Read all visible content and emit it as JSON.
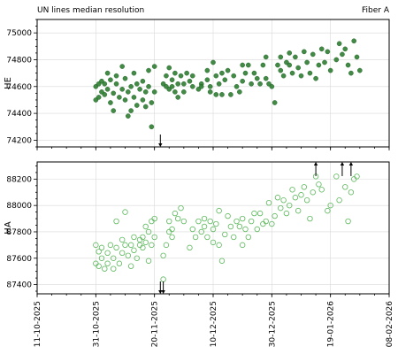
{
  "figure": {
    "title_left": "UN lines median resolution",
    "title_right": "Fiber A"
  },
  "chart_data": [
    {
      "type": "scatter",
      "title": "",
      "ylabel": "HE",
      "xlabel": "",
      "x_type": "date",
      "xlim": [
        "2025-10-11",
        "2026-02-08"
      ],
      "ylim": [
        74150,
        75100
      ],
      "yticks": [
        74200,
        74400,
        74600,
        74800,
        75000
      ],
      "grid": true,
      "marker": "filled-circle",
      "color": "#2e7d32",
      "outside_markers": [
        {
          "x": "2025-11-22",
          "direction": "down"
        }
      ],
      "points": [
        {
          "x": "2025-10-31",
          "y": 74600
        },
        {
          "x": "2025-10-31",
          "y": 74500
        },
        {
          "x": "2025-11-01",
          "y": 74620
        },
        {
          "x": "2025-11-01",
          "y": 74520
        },
        {
          "x": "2025-11-02",
          "y": 74560
        },
        {
          "x": "2025-11-02",
          "y": 74640
        },
        {
          "x": "2025-11-03",
          "y": 74540
        },
        {
          "x": "2025-11-03",
          "y": 74620
        },
        {
          "x": "2025-11-04",
          "y": 74700
        },
        {
          "x": "2025-11-04",
          "y": 74580
        },
        {
          "x": "2025-11-05",
          "y": 74480
        },
        {
          "x": "2025-11-05",
          "y": 74650
        },
        {
          "x": "2025-11-06",
          "y": 74420
        },
        {
          "x": "2025-11-06",
          "y": 74550
        },
        {
          "x": "2025-11-07",
          "y": 74620
        },
        {
          "x": "2025-11-07",
          "y": 74680
        },
        {
          "x": "2025-11-08",
          "y": 74520
        },
        {
          "x": "2025-11-09",
          "y": 74750
        },
        {
          "x": "2025-11-09",
          "y": 74580
        },
        {
          "x": "2025-11-10",
          "y": 74660
        },
        {
          "x": "2025-11-10",
          "y": 74500
        },
        {
          "x": "2025-11-11",
          "y": 74380
        },
        {
          "x": "2025-11-11",
          "y": 74560
        },
        {
          "x": "2025-11-12",
          "y": 74420
        },
        {
          "x": "2025-11-12",
          "y": 74600
        },
        {
          "x": "2025-11-13",
          "y": 74700
        },
        {
          "x": "2025-11-13",
          "y": 74520
        },
        {
          "x": "2025-11-14",
          "y": 74460
        },
        {
          "x": "2025-11-14",
          "y": 74620
        },
        {
          "x": "2025-11-15",
          "y": 74580
        },
        {
          "x": "2025-11-16",
          "y": 74500
        },
        {
          "x": "2025-11-16",
          "y": 74640
        },
        {
          "x": "2025-11-17",
          "y": 74450
        },
        {
          "x": "2025-11-17",
          "y": 74560
        },
        {
          "x": "2025-11-18",
          "y": 74720
        },
        {
          "x": "2025-11-18",
          "y": 74600
        },
        {
          "x": "2025-11-19",
          "y": 74300
        },
        {
          "x": "2025-11-19",
          "y": 74480
        },
        {
          "x": "2025-11-20",
          "y": 74750
        },
        {
          "x": "2025-11-20",
          "y": 74560
        },
        {
          "x": "2025-11-23",
          "y": 74620
        },
        {
          "x": "2025-11-24",
          "y": 74680
        },
        {
          "x": "2025-11-24",
          "y": 74600
        },
        {
          "x": "2025-11-25",
          "y": 74580
        },
        {
          "x": "2025-11-25",
          "y": 74740
        },
        {
          "x": "2025-11-26",
          "y": 74650
        },
        {
          "x": "2025-11-26",
          "y": 74600
        },
        {
          "x": "2025-11-27",
          "y": 74560
        },
        {
          "x": "2025-11-27",
          "y": 74700
        },
        {
          "x": "2025-11-28",
          "y": 74620
        },
        {
          "x": "2025-11-28",
          "y": 74520
        },
        {
          "x": "2025-11-29",
          "y": 74680
        },
        {
          "x": "2025-11-30",
          "y": 74620
        },
        {
          "x": "2025-11-30",
          "y": 74560
        },
        {
          "x": "2025-12-01",
          "y": 74700
        },
        {
          "x": "2025-12-02",
          "y": 74640
        },
        {
          "x": "2025-12-03",
          "y": 74600
        },
        {
          "x": "2025-12-03",
          "y": 74680
        },
        {
          "x": "2025-12-05",
          "y": 74580
        },
        {
          "x": "2025-12-06",
          "y": 74620
        },
        {
          "x": "2025-12-06",
          "y": 74600
        },
        {
          "x": "2025-12-08",
          "y": 74650
        },
        {
          "x": "2025-12-08",
          "y": 74720
        },
        {
          "x": "2025-12-09",
          "y": 74600
        },
        {
          "x": "2025-12-09",
          "y": 74560
        },
        {
          "x": "2025-12-10",
          "y": 74780
        },
        {
          "x": "2025-12-11",
          "y": 74680
        },
        {
          "x": "2025-12-11",
          "y": 74540
        },
        {
          "x": "2025-12-12",
          "y": 74620
        },
        {
          "x": "2025-12-13",
          "y": 74700
        },
        {
          "x": "2025-12-13",
          "y": 74540
        },
        {
          "x": "2025-12-14",
          "y": 74650
        },
        {
          "x": "2025-12-15",
          "y": 74720
        },
        {
          "x": "2025-12-16",
          "y": 74540
        },
        {
          "x": "2025-12-17",
          "y": 74680
        },
        {
          "x": "2025-12-18",
          "y": 74600
        },
        {
          "x": "2025-12-19",
          "y": 74560
        },
        {
          "x": "2025-12-20",
          "y": 74640
        },
        {
          "x": "2025-12-20",
          "y": 74760
        },
        {
          "x": "2025-12-21",
          "y": 74700
        },
        {
          "x": "2025-12-22",
          "y": 74760
        },
        {
          "x": "2025-12-23",
          "y": 74620
        },
        {
          "x": "2025-12-24",
          "y": 74700
        },
        {
          "x": "2025-12-25",
          "y": 74660
        },
        {
          "x": "2025-12-26",
          "y": 74620
        },
        {
          "x": "2025-12-27",
          "y": 74760
        },
        {
          "x": "2025-12-28",
          "y": 74820
        },
        {
          "x": "2025-12-28",
          "y": 74660
        },
        {
          "x": "2025-12-29",
          "y": 74620
        },
        {
          "x": "2025-12-30",
          "y": 74600
        },
        {
          "x": "2025-12-31",
          "y": 74480
        },
        {
          "x": "2026-01-01",
          "y": 74760
        },
        {
          "x": "2026-01-02",
          "y": 74820
        },
        {
          "x": "2026-01-02",
          "y": 74720
        },
        {
          "x": "2026-01-03",
          "y": 74680
        },
        {
          "x": "2026-01-04",
          "y": 74780
        },
        {
          "x": "2026-01-05",
          "y": 74850
        },
        {
          "x": "2026-01-05",
          "y": 74760
        },
        {
          "x": "2026-01-06",
          "y": 74700
        },
        {
          "x": "2026-01-07",
          "y": 74820
        },
        {
          "x": "2026-01-08",
          "y": 74740
        },
        {
          "x": "2026-01-09",
          "y": 74680
        },
        {
          "x": "2026-01-10",
          "y": 74860
        },
        {
          "x": "2026-01-11",
          "y": 74780
        },
        {
          "x": "2026-01-12",
          "y": 74700
        },
        {
          "x": "2026-01-13",
          "y": 74840
        },
        {
          "x": "2026-01-14",
          "y": 74660
        },
        {
          "x": "2026-01-15",
          "y": 74760
        },
        {
          "x": "2026-01-16",
          "y": 74880
        },
        {
          "x": "2026-01-17",
          "y": 74780
        },
        {
          "x": "2026-01-18",
          "y": 74860
        },
        {
          "x": "2026-01-19",
          "y": 74720
        },
        {
          "x": "2026-01-21",
          "y": 74800
        },
        {
          "x": "2026-01-22",
          "y": 74920
        },
        {
          "x": "2026-01-23",
          "y": 74840
        },
        {
          "x": "2026-01-24",
          "y": 74880
        },
        {
          "x": "2026-01-25",
          "y": 74760
        },
        {
          "x": "2026-01-26",
          "y": 74700
        },
        {
          "x": "2026-01-27",
          "y": 74940
        },
        {
          "x": "2026-01-28",
          "y": 74820
        },
        {
          "x": "2026-01-29",
          "y": 74720
        }
      ]
    },
    {
      "type": "scatter",
      "title": "",
      "ylabel": "HA",
      "xlabel": "",
      "x_type": "date",
      "xlim": [
        "2025-10-11",
        "2026-02-08"
      ],
      "ylim": [
        87330,
        88330
      ],
      "yticks": [
        87400,
        87600,
        87800,
        88000,
        88200
      ],
      "xticks": [
        "11-10-2025",
        "31-10-2025",
        "20-11-2025",
        "10-12-2025",
        "30-12-2025",
        "19-01-2026",
        "08-02-2026"
      ],
      "grid": true,
      "marker": "open-circle",
      "color": "#5cb85c",
      "outside_markers": [
        {
          "x": "2025-11-22",
          "direction": "down"
        },
        {
          "x": "2025-11-23",
          "direction": "down"
        },
        {
          "x": "2026-01-14",
          "direction": "up"
        },
        {
          "x": "2026-01-23",
          "direction": "up"
        },
        {
          "x": "2026-01-26",
          "direction": "up"
        }
      ],
      "points": [
        {
          "x": "2025-10-31",
          "y": 87700
        },
        {
          "x": "2025-10-31",
          "y": 87560
        },
        {
          "x": "2025-11-01",
          "y": 87650
        },
        {
          "x": "2025-11-01",
          "y": 87540
        },
        {
          "x": "2025-11-02",
          "y": 87600
        },
        {
          "x": "2025-11-02",
          "y": 87680
        },
        {
          "x": "2025-11-03",
          "y": 87520
        },
        {
          "x": "2025-11-04",
          "y": 87640
        },
        {
          "x": "2025-11-04",
          "y": 87560
        },
        {
          "x": "2025-11-05",
          "y": 87700
        },
        {
          "x": "2025-11-06",
          "y": 87600
        },
        {
          "x": "2025-11-06",
          "y": 87520
        },
        {
          "x": "2025-11-07",
          "y": 87880
        },
        {
          "x": "2025-11-07",
          "y": 87680
        },
        {
          "x": "2025-11-08",
          "y": 87560
        },
        {
          "x": "2025-11-09",
          "y": 87740
        },
        {
          "x": "2025-11-09",
          "y": 87640
        },
        {
          "x": "2025-11-10",
          "y": 87950
        },
        {
          "x": "2025-11-10",
          "y": 87700
        },
        {
          "x": "2025-11-11",
          "y": 87620
        },
        {
          "x": "2025-11-12",
          "y": 87540
        },
        {
          "x": "2025-11-12",
          "y": 87700
        },
        {
          "x": "2025-11-13",
          "y": 87760
        },
        {
          "x": "2025-11-13",
          "y": 87660
        },
        {
          "x": "2025-11-14",
          "y": 87600
        },
        {
          "x": "2025-11-15",
          "y": 87740
        },
        {
          "x": "2025-11-15",
          "y": 87700
        },
        {
          "x": "2025-11-16",
          "y": 87680
        },
        {
          "x": "2025-11-16",
          "y": 87760
        },
        {
          "x": "2025-11-17",
          "y": 87840
        },
        {
          "x": "2025-11-17",
          "y": 87720
        },
        {
          "x": "2025-11-18",
          "y": 87580
        },
        {
          "x": "2025-11-18",
          "y": 87800
        },
        {
          "x": "2025-11-19",
          "y": 87880
        },
        {
          "x": "2025-11-19",
          "y": 87700
        },
        {
          "x": "2025-11-20",
          "y": 87900
        },
        {
          "x": "2025-11-20",
          "y": 87760
        },
        {
          "x": "2025-11-23",
          "y": 87620
        },
        {
          "x": "2025-11-23",
          "y": 87440
        },
        {
          "x": "2025-11-24",
          "y": 87700
        },
        {
          "x": "2025-11-25",
          "y": 87800
        },
        {
          "x": "2025-11-25",
          "y": 87880
        },
        {
          "x": "2025-11-26",
          "y": 87820
        },
        {
          "x": "2025-11-26",
          "y": 87760
        },
        {
          "x": "2025-11-27",
          "y": 87940
        },
        {
          "x": "2025-11-28",
          "y": 87900
        },
        {
          "x": "2025-11-29",
          "y": 87980
        },
        {
          "x": "2025-11-30",
          "y": 87880
        },
        {
          "x": "2025-12-02",
          "y": 87680
        },
        {
          "x": "2025-12-03",
          "y": 87820
        },
        {
          "x": "2025-12-04",
          "y": 87760
        },
        {
          "x": "2025-12-05",
          "y": 87880
        },
        {
          "x": "2025-12-06",
          "y": 87800
        },
        {
          "x": "2025-12-07",
          "y": 87900
        },
        {
          "x": "2025-12-07",
          "y": 87840
        },
        {
          "x": "2025-12-08",
          "y": 87760
        },
        {
          "x": "2025-12-09",
          "y": 87880
        },
        {
          "x": "2025-12-10",
          "y": 87820
        },
        {
          "x": "2025-12-10",
          "y": 87720
        },
        {
          "x": "2025-12-11",
          "y": 87860
        },
        {
          "x": "2025-12-12",
          "y": 87700
        },
        {
          "x": "2025-12-12",
          "y": 87960
        },
        {
          "x": "2025-12-13",
          "y": 87580
        },
        {
          "x": "2025-12-14",
          "y": 87780
        },
        {
          "x": "2025-12-15",
          "y": 87920
        },
        {
          "x": "2025-12-16",
          "y": 87840
        },
        {
          "x": "2025-12-17",
          "y": 87760
        },
        {
          "x": "2025-12-18",
          "y": 87880
        },
        {
          "x": "2025-12-19",
          "y": 87840
        },
        {
          "x": "2025-12-20",
          "y": 87700
        },
        {
          "x": "2025-12-20",
          "y": 87900
        },
        {
          "x": "2025-12-21",
          "y": 87820
        },
        {
          "x": "2025-12-22",
          "y": 87760
        },
        {
          "x": "2025-12-23",
          "y": 87880
        },
        {
          "x": "2025-12-24",
          "y": 87940
        },
        {
          "x": "2025-12-25",
          "y": 87820
        },
        {
          "x": "2025-12-26",
          "y": 87940
        },
        {
          "x": "2025-12-27",
          "y": 87860
        },
        {
          "x": "2025-12-28",
          "y": 87880
        },
        {
          "x": "2025-12-29",
          "y": 88020
        },
        {
          "x": "2025-12-30",
          "y": 87860
        },
        {
          "x": "2025-12-31",
          "y": 87920
        },
        {
          "x": "2026-01-01",
          "y": 88060
        },
        {
          "x": "2026-01-02",
          "y": 87980
        },
        {
          "x": "2026-01-03",
          "y": 88040
        },
        {
          "x": "2026-01-04",
          "y": 87940
        },
        {
          "x": "2026-01-05",
          "y": 88000
        },
        {
          "x": "2026-01-06",
          "y": 88120
        },
        {
          "x": "2026-01-07",
          "y": 88060
        },
        {
          "x": "2026-01-08",
          "y": 87960
        },
        {
          "x": "2026-01-09",
          "y": 88080
        },
        {
          "x": "2026-01-10",
          "y": 88140
        },
        {
          "x": "2026-01-11",
          "y": 88040
        },
        {
          "x": "2026-01-12",
          "y": 87900
        },
        {
          "x": "2026-01-13",
          "y": 88100
        },
        {
          "x": "2026-01-14",
          "y": 88220
        },
        {
          "x": "2026-01-15",
          "y": 88160
        },
        {
          "x": "2026-01-16",
          "y": 88120
        },
        {
          "x": "2026-01-18",
          "y": 87960
        },
        {
          "x": "2026-01-19",
          "y": 88000
        },
        {
          "x": "2026-01-21",
          "y": 88220
        },
        {
          "x": "2026-01-22",
          "y": 88040
        },
        {
          "x": "2026-01-24",
          "y": 88140
        },
        {
          "x": "2026-01-25",
          "y": 87880
        },
        {
          "x": "2026-01-26",
          "y": 88100
        },
        {
          "x": "2026-01-27",
          "y": 88200
        },
        {
          "x": "2026-01-28",
          "y": 88220
        }
      ]
    }
  ]
}
